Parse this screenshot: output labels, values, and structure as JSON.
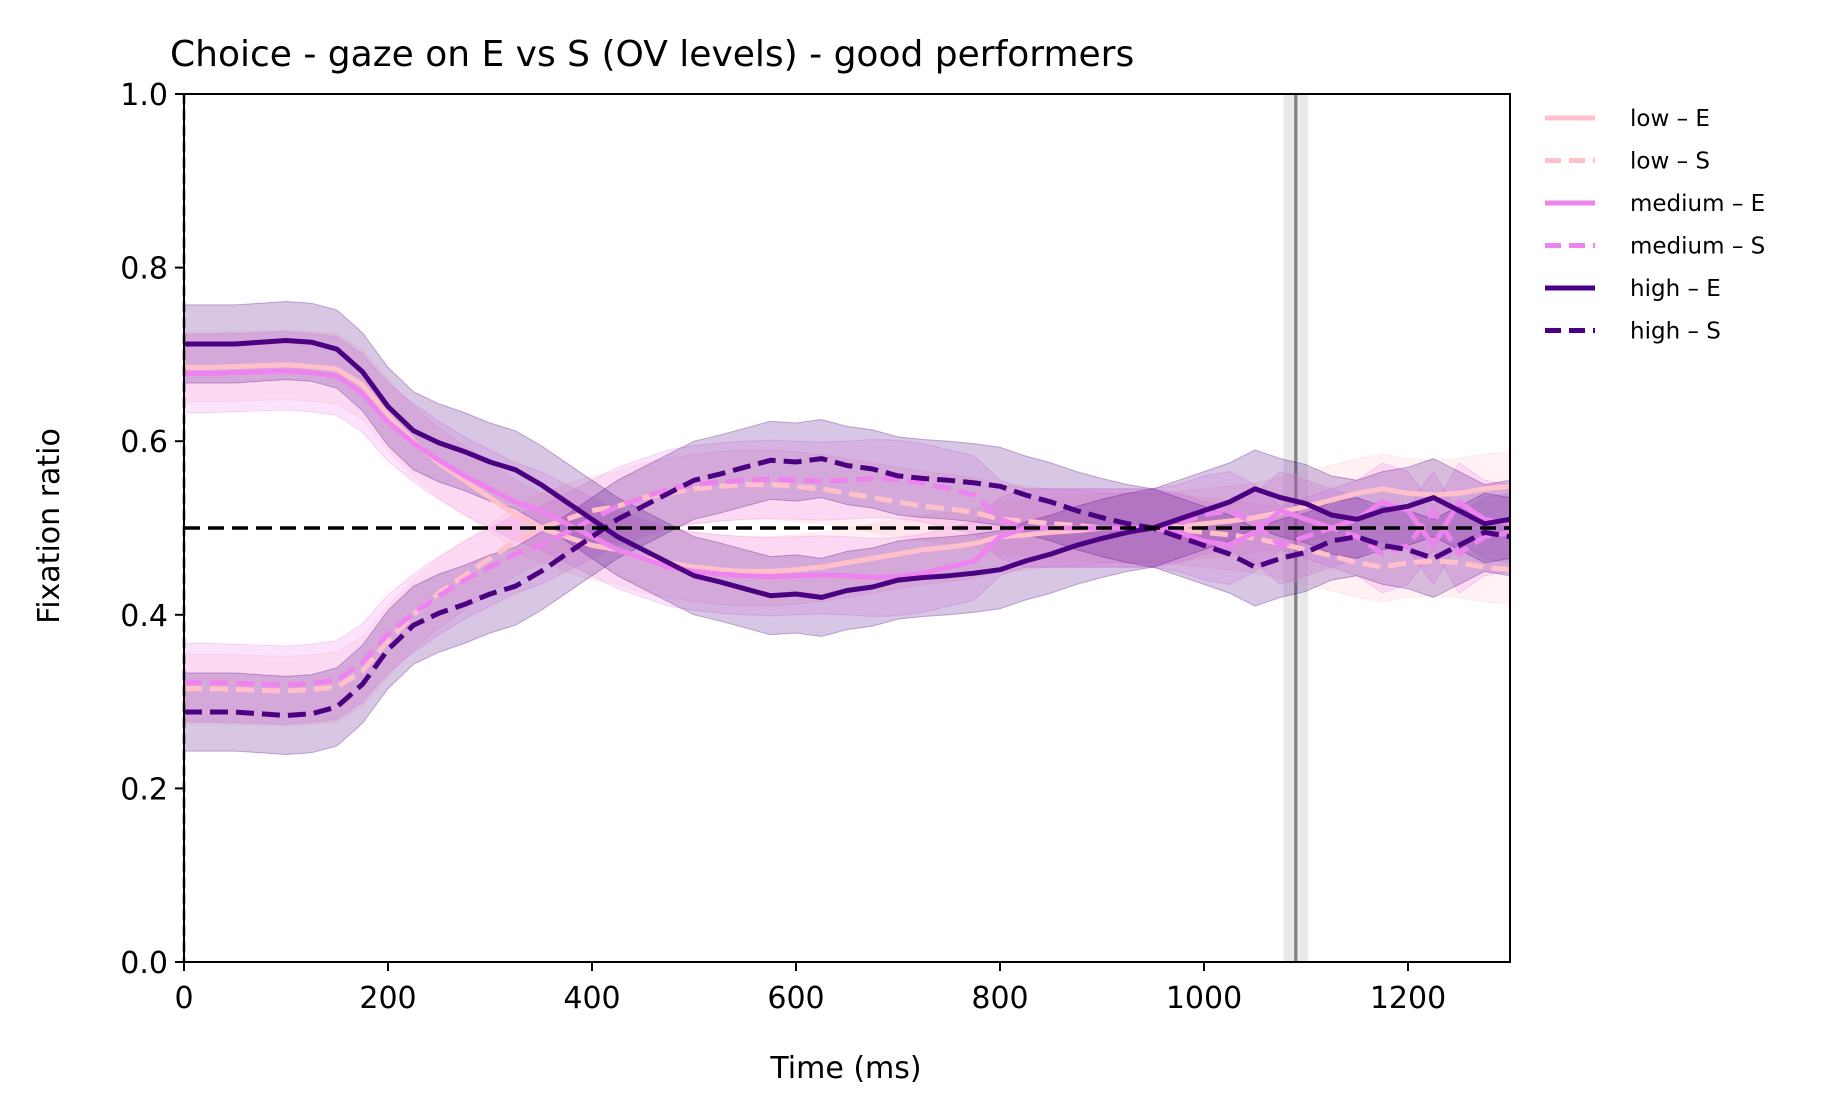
{
  "chart_data": {
    "type": "line",
    "title": "Choice - gaze on E vs S (OV levels) - good performers",
    "xlabel": "Time (ms)",
    "ylabel": "Fixation ratio",
    "xlim": [
      0,
      1300
    ],
    "ylim": [
      0.0,
      1.0
    ],
    "x_ticks": [
      "0",
      "200",
      "400",
      "600",
      "800",
      "1000",
      "1200"
    ],
    "y_ticks": [
      "0.0",
      "0.2",
      "0.4",
      "0.6",
      "0.8",
      "1.0"
    ],
    "grid": false,
    "legend_position": "outside-right",
    "reference_lines": {
      "horizontal_y": 0.5,
      "vertical_x_start": 0,
      "vertical_x_marker": 1090
    },
    "x": [
      0,
      25,
      50,
      75,
      100,
      125,
      150,
      175,
      200,
      225,
      250,
      275,
      300,
      325,
      350,
      375,
      400,
      425,
      450,
      475,
      500,
      525,
      550,
      575,
      600,
      625,
      650,
      675,
      700,
      725,
      750,
      775,
      800,
      825,
      850,
      875,
      900,
      925,
      950,
      975,
      1000,
      1025,
      1050,
      1075,
      1100,
      1125,
      1150,
      1175,
      1200,
      1225,
      1250,
      1275,
      1300
    ],
    "series": [
      {
        "name": "low – E",
        "color": "#ffc0cb",
        "dash": "solid",
        "ci": 0.04,
        "values": [
          0.685,
          0.685,
          0.686,
          0.687,
          0.688,
          0.686,
          0.683,
          0.665,
          0.63,
          0.6,
          0.575,
          0.555,
          0.535,
          0.515,
          0.5,
          0.49,
          0.48,
          0.475,
          0.465,
          0.46,
          0.455,
          0.452,
          0.45,
          0.45,
          0.452,
          0.455,
          0.46,
          0.465,
          0.47,
          0.475,
          0.478,
          0.482,
          0.49,
          0.492,
          0.495,
          0.497,
          0.5,
          0.5,
          0.5,
          0.502,
          0.505,
          0.508,
          0.512,
          0.518,
          0.525,
          0.532,
          0.54,
          0.545,
          0.54,
          0.538,
          0.54,
          0.545,
          0.548
        ]
      },
      {
        "name": "low – S",
        "color": "#ffc0cb",
        "dash": "dashed",
        "ci": 0.04,
        "values": [
          0.315,
          0.315,
          0.314,
          0.313,
          0.312,
          0.314,
          0.317,
          0.335,
          0.37,
          0.4,
          0.425,
          0.445,
          0.465,
          0.485,
          0.5,
          0.51,
          0.52,
          0.525,
          0.535,
          0.54,
          0.545,
          0.548,
          0.55,
          0.55,
          0.548,
          0.545,
          0.54,
          0.535,
          0.53,
          0.525,
          0.522,
          0.518,
          0.51,
          0.508,
          0.505,
          0.503,
          0.5,
          0.5,
          0.5,
          0.498,
          0.495,
          0.492,
          0.488,
          0.482,
          0.475,
          0.468,
          0.46,
          0.455,
          0.46,
          0.462,
          0.46,
          0.455,
          0.452
        ]
      },
      {
        "name": "medium – E",
        "color": "#ee82ee",
        "dash": "solid",
        "ci": 0.045,
        "values": [
          0.678,
          0.678,
          0.679,
          0.68,
          0.681,
          0.679,
          0.675,
          0.655,
          0.622,
          0.598,
          0.578,
          0.56,
          0.545,
          0.53,
          0.52,
          0.505,
          0.49,
          0.475,
          0.465,
          0.455,
          0.45,
          0.447,
          0.445,
          0.444,
          0.445,
          0.446,
          0.445,
          0.443,
          0.444,
          0.448,
          0.455,
          0.462,
          0.49,
          0.5,
          0.5,
          0.5,
          0.5,
          0.5,
          0.5,
          0.495,
          0.485,
          0.48,
          0.495,
          0.52,
          0.51,
          0.5,
          0.51,
          0.53,
          0.52,
          0.48,
          0.53,
          0.51,
          0.505
        ]
      },
      {
        "name": "medium – S",
        "color": "#ee82ee",
        "dash": "dashed",
        "ci": 0.045,
        "values": [
          0.322,
          0.322,
          0.321,
          0.32,
          0.319,
          0.321,
          0.325,
          0.345,
          0.378,
          0.402,
          0.422,
          0.44,
          0.455,
          0.47,
          0.48,
          0.495,
          0.51,
          0.525,
          0.535,
          0.545,
          0.55,
          0.553,
          0.555,
          0.556,
          0.555,
          0.554,
          0.555,
          0.557,
          0.556,
          0.552,
          0.545,
          0.538,
          0.51,
          0.5,
          0.5,
          0.5,
          0.5,
          0.5,
          0.5,
          0.505,
          0.515,
          0.52,
          0.505,
          0.48,
          0.49,
          0.5,
          0.49,
          0.47,
          0.48,
          0.52,
          0.47,
          0.49,
          0.495
        ]
      },
      {
        "name": "high – E",
        "color": "#4b0082",
        "dash": "solid",
        "ci": 0.045,
        "values": [
          0.712,
          0.712,
          0.712,
          0.714,
          0.716,
          0.714,
          0.706,
          0.68,
          0.64,
          0.612,
          0.598,
          0.588,
          0.576,
          0.567,
          0.55,
          0.53,
          0.51,
          0.49,
          0.475,
          0.46,
          0.445,
          0.438,
          0.43,
          0.422,
          0.424,
          0.42,
          0.428,
          0.432,
          0.44,
          0.443,
          0.445,
          0.448,
          0.452,
          0.462,
          0.47,
          0.48,
          0.488,
          0.495,
          0.5,
          0.51,
          0.52,
          0.53,
          0.545,
          0.535,
          0.528,
          0.515,
          0.51,
          0.52,
          0.525,
          0.535,
          0.52,
          0.505,
          0.51
        ]
      },
      {
        "name": "high – S",
        "color": "#4b0082",
        "dash": "dashed",
        "ci": 0.045,
        "values": [
          0.288,
          0.288,
          0.288,
          0.286,
          0.284,
          0.286,
          0.294,
          0.32,
          0.36,
          0.388,
          0.402,
          0.412,
          0.424,
          0.433,
          0.45,
          0.47,
          0.49,
          0.51,
          0.525,
          0.54,
          0.555,
          0.562,
          0.57,
          0.578,
          0.576,
          0.58,
          0.572,
          0.568,
          0.56,
          0.557,
          0.555,
          0.552,
          0.548,
          0.538,
          0.53,
          0.52,
          0.512,
          0.505,
          0.5,
          0.49,
          0.48,
          0.47,
          0.455,
          0.465,
          0.472,
          0.485,
          0.49,
          0.48,
          0.475,
          0.465,
          0.48,
          0.495,
          0.49
        ]
      }
    ]
  }
}
